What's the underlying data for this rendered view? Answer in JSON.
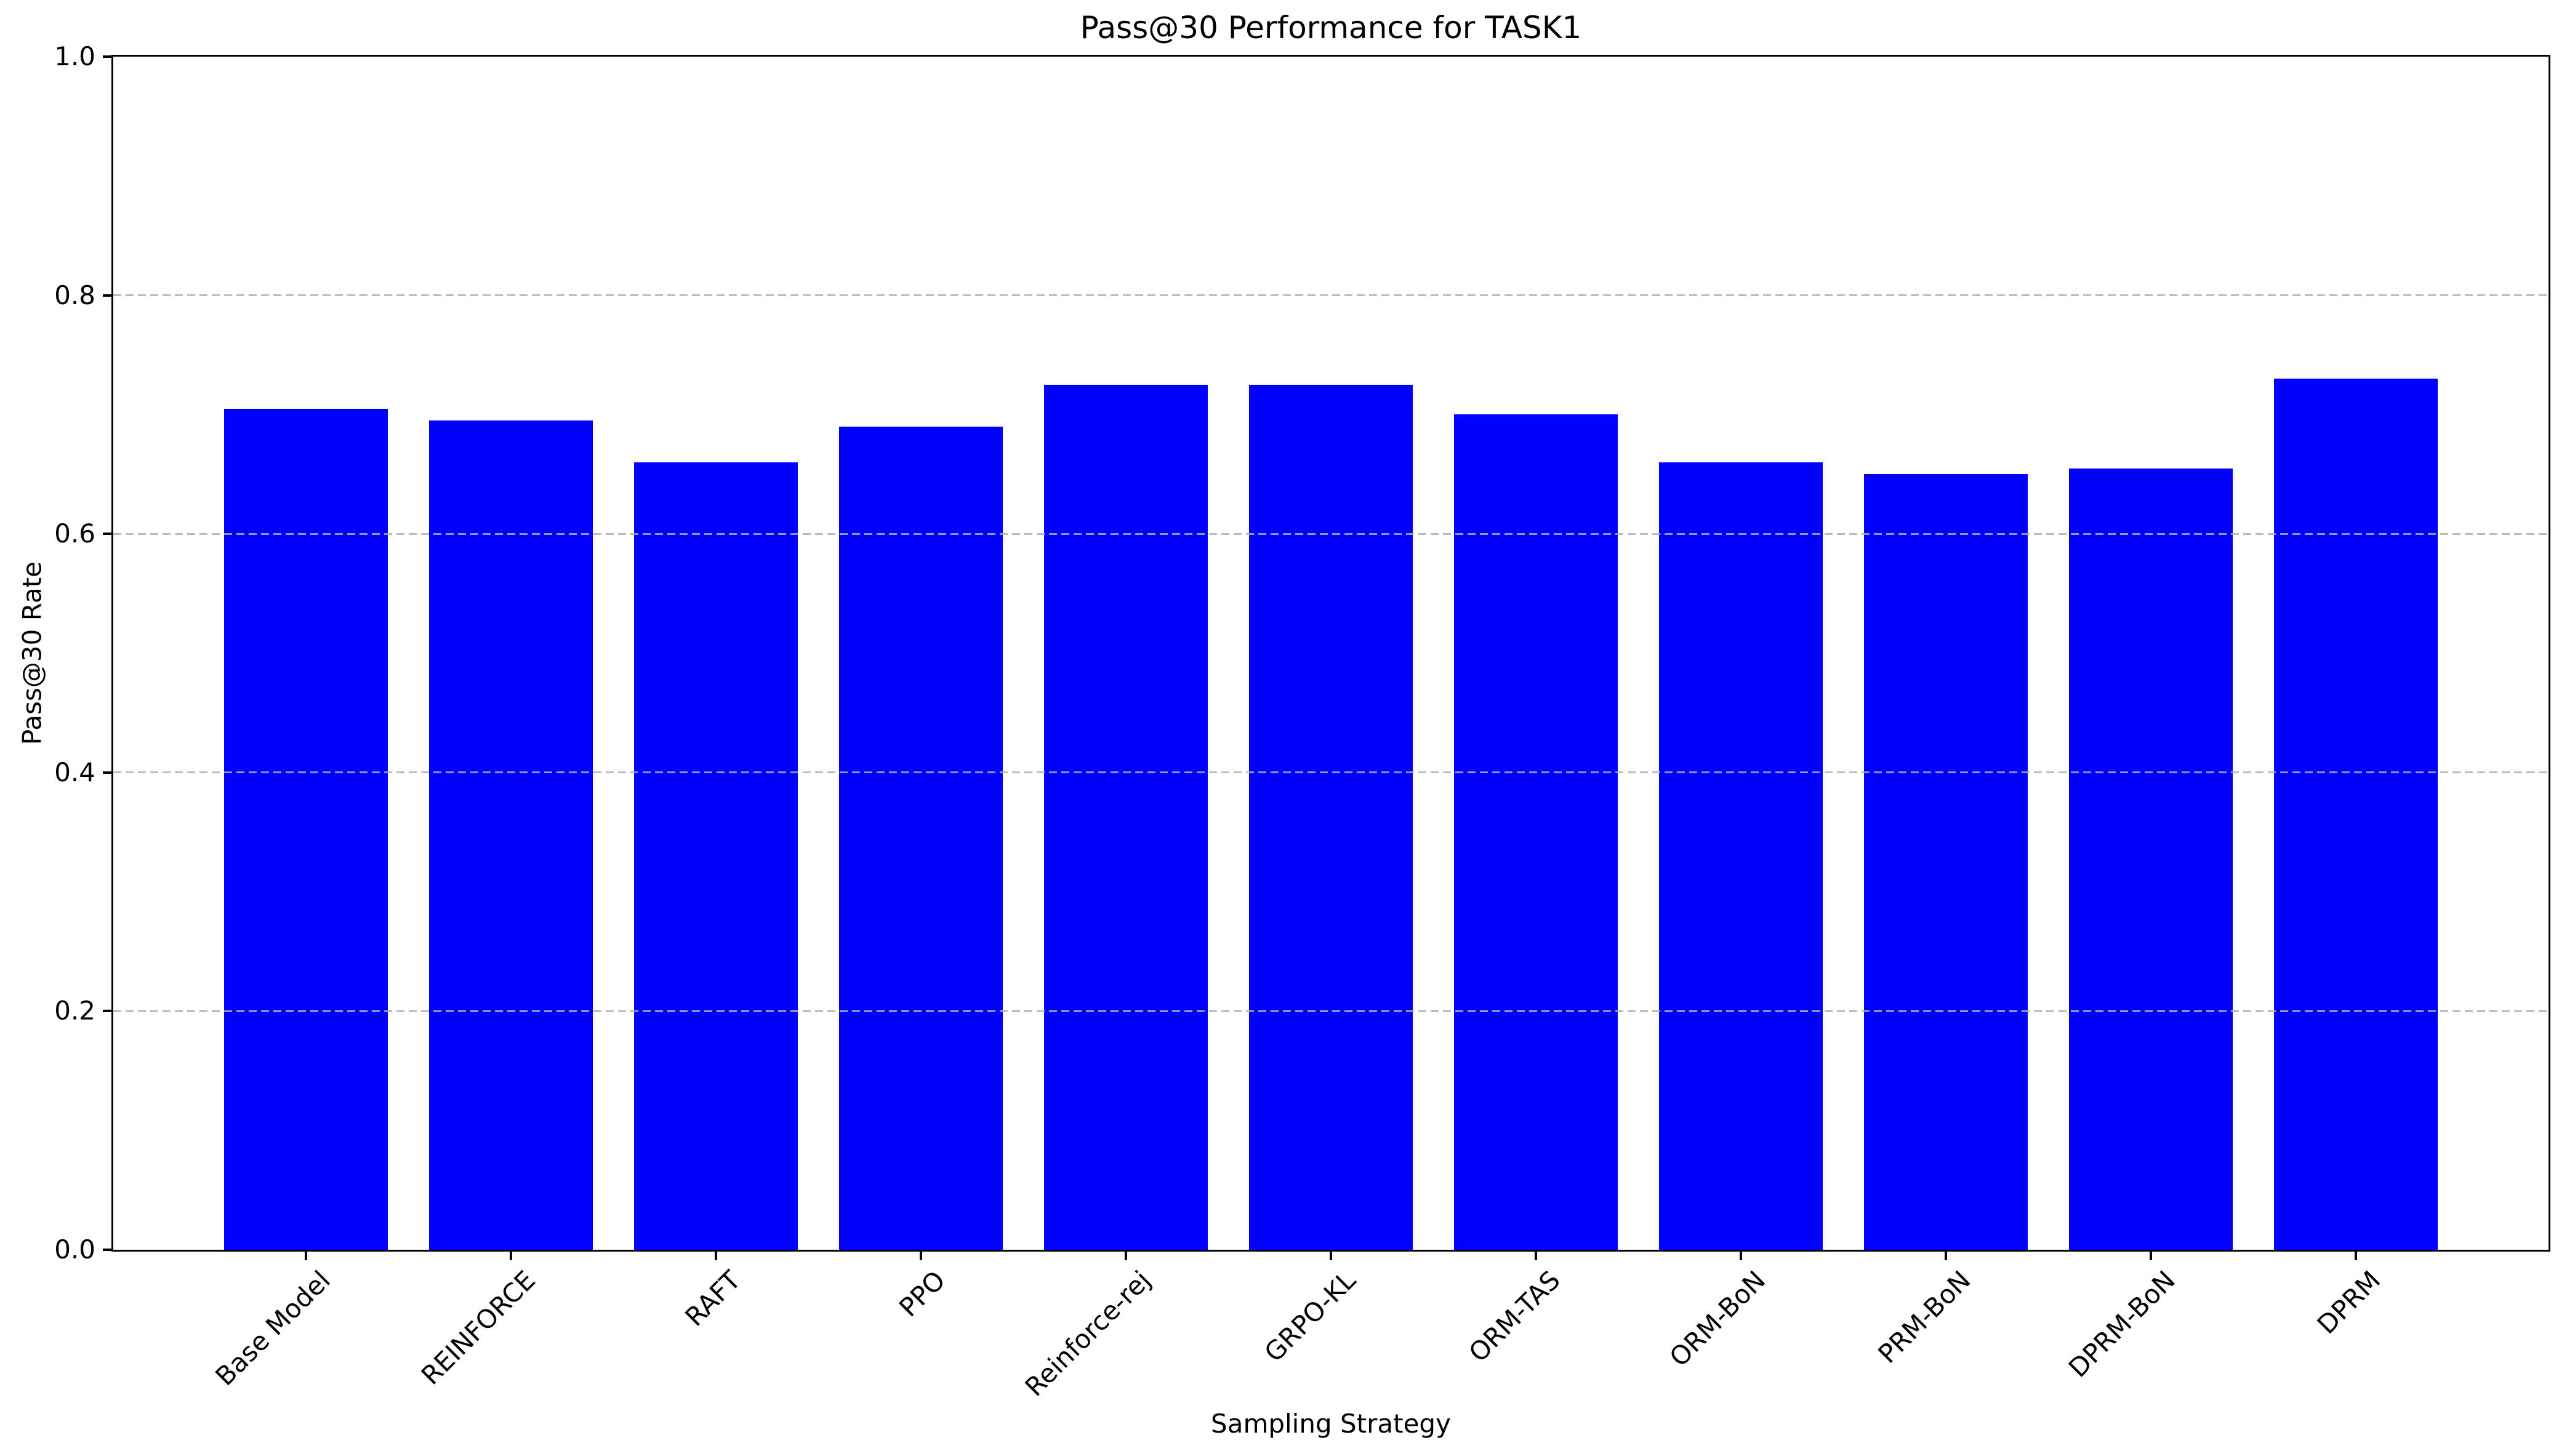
{
  "chart_data": {
    "type": "bar",
    "title": "Pass@30 Performance for TASK1",
    "xlabel": "Sampling Strategy",
    "ylabel": "Pass@30 Rate",
    "categories": [
      "Base Model",
      "REINFORCE",
      "RAFT",
      "PPO",
      "Reinforce-rej",
      "GRPO-KL",
      "ORM-TAS",
      "ORM-BoN",
      "PRM-BoN",
      "DPRM-BoN",
      "DPRM"
    ],
    "values": [
      0.705,
      0.695,
      0.66,
      0.69,
      0.725,
      0.725,
      0.7,
      0.66,
      0.65,
      0.655,
      0.73
    ],
    "ylim": [
      0.0,
      1.0
    ],
    "ytick_labels": [
      "0.0",
      "0.2",
      "0.4",
      "0.6",
      "0.8",
      "1.0"
    ],
    "ytick_values": [
      0.0,
      0.2,
      0.4,
      0.6,
      0.8,
      1.0
    ],
    "bar_color": "#0000ff",
    "grid": "horizontal",
    "grid_style": "dashed",
    "grid_color": "#b0b0b0",
    "xtick_rotation_deg": 45,
    "legend": "none"
  }
}
